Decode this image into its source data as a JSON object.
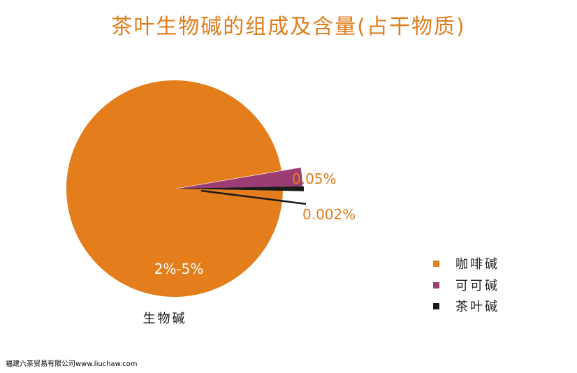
{
  "chart_data": {
    "type": "pie",
    "title": "茶叶生物碱的组成及含量(占干物质)",
    "xlabel": "生物碱",
    "slices": [
      {
        "name": "咖啡碱",
        "label": "2%-5%",
        "value": 97.0,
        "color": "#e47d1c"
      },
      {
        "name": "可可碱",
        "label": "0.05%",
        "value": 2.4,
        "color": "#9b3d74"
      },
      {
        "name": "茶叶碱",
        "label": "0.002%",
        "value": 0.6,
        "color": "#1a1a1a"
      }
    ],
    "legend": {
      "position": "right"
    }
  },
  "footer": {
    "text": "福建六茶贸易有限公司www.liuchaw.com"
  }
}
